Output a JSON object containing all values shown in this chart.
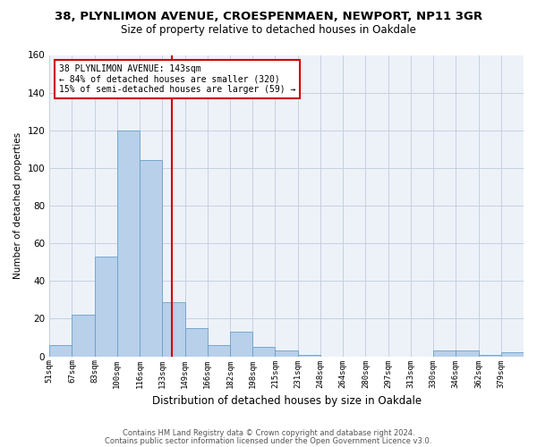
{
  "title1": "38, PLYNLIMON AVENUE, CROESPENMAEN, NEWPORT, NP11 3GR",
  "title2": "Size of property relative to detached houses in Oakdale",
  "xlabel": "Distribution of detached houses by size in Oakdale",
  "ylabel": "Number of detached properties",
  "bar_color": "#b8d0ea",
  "bar_edge_color": "#6a9fc8",
  "bin_labels": [
    "51sqm",
    "67sqm",
    "83sqm",
    "100sqm",
    "116sqm",
    "133sqm",
    "149sqm",
    "166sqm",
    "182sqm",
    "198sqm",
    "215sqm",
    "231sqm",
    "248sqm",
    "264sqm",
    "280sqm",
    "297sqm",
    "313sqm",
    "330sqm",
    "346sqm",
    "362sqm",
    "379sqm"
  ],
  "bar_heights": [
    6,
    22,
    53,
    120,
    104,
    29,
    15,
    6,
    13,
    5,
    3,
    1,
    0,
    0,
    0,
    0,
    0,
    3,
    3,
    1,
    2
  ],
  "vline_bar_index": 5.44,
  "vline_color": "#cc0000",
  "ylim": [
    0,
    160
  ],
  "yticks": [
    0,
    20,
    40,
    60,
    80,
    100,
    120,
    140,
    160
  ],
  "annotation_text": "38 PLYNLIMON AVENUE: 143sqm\n← 84% of detached houses are smaller (320)\n15% of semi-detached houses are larger (59) →",
  "annotation_box_color": "#ffffff",
  "annotation_box_edge": "#cc0000",
  "footer1": "Contains HM Land Registry data © Crown copyright and database right 2024.",
  "footer2": "Contains public sector information licensed under the Open Government Licence v3.0.",
  "bg_color": "#edf2f9",
  "grid_color": "#c5d0e0",
  "title1_fontsize": 9.5,
  "title2_fontsize": 8.5,
  "xlabel_fontsize": 8.5,
  "ylabel_fontsize": 7.5,
  "xtick_fontsize": 6.5,
  "ytick_fontsize": 7.5,
  "annot_fontsize": 7.0
}
